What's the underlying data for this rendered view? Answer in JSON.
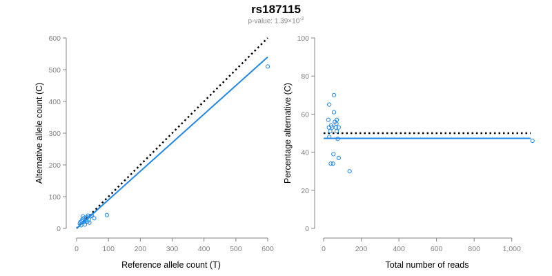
{
  "title": "rs187115",
  "subtitle": {
    "prefix": "p-value: 1.39×10",
    "exponent": "-2"
  },
  "colors": {
    "series": "#2188e8",
    "identity_line": "#000000",
    "axis": "#808080"
  },
  "chart_data": [
    {
      "type": "scatter",
      "name": "left",
      "xlabel": "Reference allele count (T)",
      "ylabel": "Alternative allele count (C)",
      "xlim": [
        0,
        600
      ],
      "ylim": [
        0,
        600
      ],
      "xticks": [
        0,
        100,
        200,
        300,
        400,
        500,
        600
      ],
      "yticks": [
        0,
        100,
        200,
        300,
        400,
        500,
        600
      ],
      "xtick_labels": [
        "0",
        "100",
        "200",
        "300",
        "400",
        "500",
        "600"
      ],
      "ytick_labels": [
        "0",
        "100",
        "200",
        "300",
        "400",
        "500",
        "600"
      ],
      "points": [
        {
          "x": 10,
          "y": 15
        },
        {
          "x": 12,
          "y": 20
        },
        {
          "x": 14,
          "y": 10
        },
        {
          "x": 16,
          "y": 22
        },
        {
          "x": 18,
          "y": 28
        },
        {
          "x": 20,
          "y": 38
        },
        {
          "x": 22,
          "y": 32
        },
        {
          "x": 24,
          "y": 20
        },
        {
          "x": 26,
          "y": 12
        },
        {
          "x": 28,
          "y": 25
        },
        {
          "x": 30,
          "y": 33
        },
        {
          "x": 32,
          "y": 35
        },
        {
          "x": 34,
          "y": 22
        },
        {
          "x": 36,
          "y": 40
        },
        {
          "x": 38,
          "y": 28
        },
        {
          "x": 40,
          "y": 18
        },
        {
          "x": 44,
          "y": 38
        },
        {
          "x": 48,
          "y": 40
        },
        {
          "x": 55,
          "y": 32
        },
        {
          "x": 95,
          "y": 42
        },
        {
          "x": 600,
          "y": 510
        }
      ],
      "lines": [
        {
          "name": "expected",
          "style": "dotted",
          "x": [
            0,
            600
          ],
          "y": [
            0,
            600
          ]
        },
        {
          "name": "fit",
          "style": "solid",
          "x": [
            0,
            600
          ],
          "y": [
            0,
            540
          ]
        }
      ]
    },
    {
      "type": "scatter",
      "name": "right",
      "xlabel": "Total number of reads",
      "ylabel": "Percentage alternative (C)",
      "xlim": [
        0,
        1100
      ],
      "ylim": [
        0,
        100
      ],
      "xticks": [
        0,
        200,
        400,
        600,
        800,
        1000
      ],
      "yticks": [
        0,
        20,
        40,
        60,
        80,
        100
      ],
      "xtick_labels": [
        "0",
        "200",
        "400",
        "600",
        "800",
        "1,000"
      ],
      "ytick_labels": [
        "0",
        "20",
        "40",
        "60",
        "80",
        "100"
      ],
      "points": [
        {
          "x": 25,
          "y": 57
        },
        {
          "x": 28,
          "y": 53
        },
        {
          "x": 30,
          "y": 48
        },
        {
          "x": 30,
          "y": 65
        },
        {
          "x": 35,
          "y": 51
        },
        {
          "x": 38,
          "y": 34
        },
        {
          "x": 40,
          "y": 54
        },
        {
          "x": 45,
          "y": 53
        },
        {
          "x": 50,
          "y": 34
        },
        {
          "x": 52,
          "y": 39
        },
        {
          "x": 55,
          "y": 61
        },
        {
          "x": 55,
          "y": 70
        },
        {
          "x": 60,
          "y": 56
        },
        {
          "x": 65,
          "y": 53
        },
        {
          "x": 68,
          "y": 55
        },
        {
          "x": 70,
          "y": 57
        },
        {
          "x": 70,
          "y": 51
        },
        {
          "x": 75,
          "y": 47
        },
        {
          "x": 80,
          "y": 37
        },
        {
          "x": 80,
          "y": 53
        },
        {
          "x": 138,
          "y": 30
        },
        {
          "x": 1110,
          "y": 46
        }
      ],
      "lines": [
        {
          "name": "expected",
          "style": "dotted",
          "x": [
            0,
            1100
          ],
          "y": [
            50,
            50
          ]
        },
        {
          "name": "fit",
          "style": "solid",
          "x": [
            0,
            1100
          ],
          "y": [
            47.3,
            47.3
          ]
        }
      ]
    }
  ]
}
